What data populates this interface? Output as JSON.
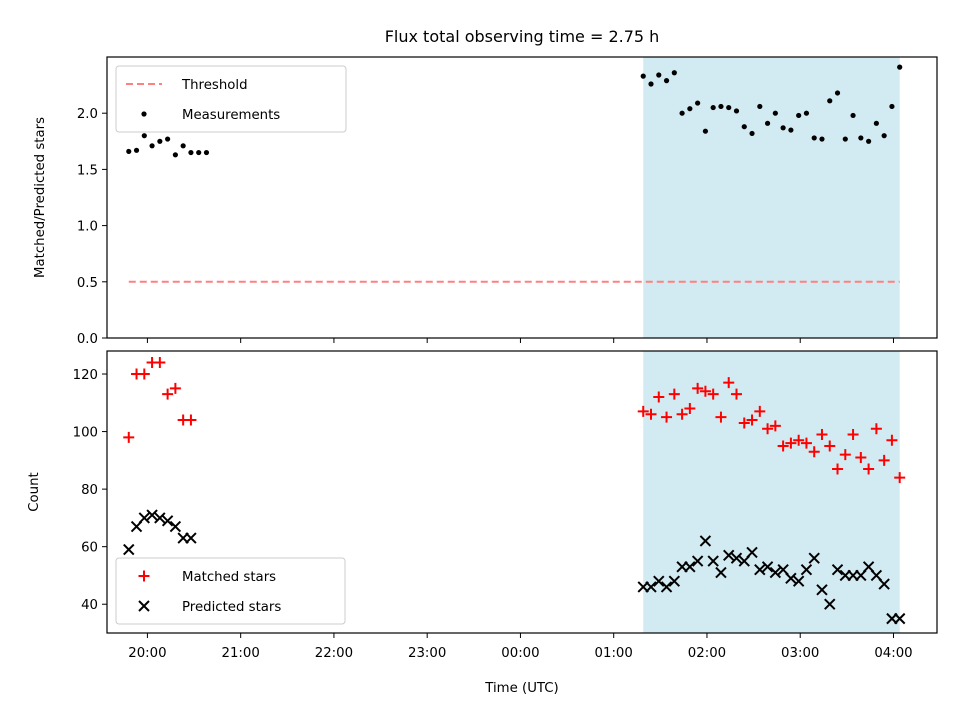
{
  "chart_data": {
    "title": "Flux total observing time = 2.75 h",
    "xlabel": "Time (UTC)",
    "xlim": [
      "19:34",
      "04:28"
    ],
    "x_ticks": [
      "20:00",
      "21:00",
      "22:00",
      "23:00",
      "00:00",
      "01:00",
      "02:00",
      "03:00",
      "04:00"
    ],
    "shaded_interval": [
      "01:19",
      "04:04"
    ],
    "shade_color": "#add8e6",
    "panels": [
      {
        "type": "scatter",
        "ylabel": "Matched/Predicted stars",
        "ylim": [
          0,
          2.5
        ],
        "y_ticks": [
          "0.0",
          "0.5",
          "1.0",
          "1.5",
          "2.0"
        ],
        "legend_position": "upper left",
        "series": [
          {
            "name": "Threshold",
            "style": "dashed-line",
            "color": "#ff8080",
            "x": [
              "19:48",
              "04:04"
            ],
            "y": [
              0.5,
              0.5
            ]
          },
          {
            "name": "Measurements",
            "style": "dot",
            "color": "#000000",
            "x": [
              "19:48",
              "19:53",
              "19:58",
              "20:03",
              "20:08",
              "20:13",
              "20:18",
              "20:23",
              "20:28",
              "20:33",
              "20:38",
              "01:19",
              "01:24",
              "01:29",
              "01:34",
              "01:39",
              "01:44",
              "01:49",
              "01:54",
              "01:59",
              "02:04",
              "02:09",
              "02:14",
              "02:19",
              "02:24",
              "02:29",
              "02:34",
              "02:39",
              "02:44",
              "02:49",
              "02:54",
              "02:59",
              "03:04",
              "03:09",
              "03:14",
              "03:19",
              "03:24",
              "03:29",
              "03:34",
              "03:39",
              "03:44",
              "03:49",
              "03:54",
              "03:59",
              "04:04"
            ],
            "y": [
              1.66,
              1.67,
              1.8,
              1.71,
              1.75,
              1.77,
              1.63,
              1.71,
              1.65,
              1.65,
              1.65,
              2.33,
              2.26,
              2.34,
              2.29,
              2.36,
              2.0,
              2.04,
              2.09,
              1.84,
              2.05,
              2.06,
              2.05,
              2.02,
              1.88,
              1.82,
              2.06,
              1.91,
              2.0,
              1.87,
              1.85,
              1.98,
              2.0,
              1.78,
              1.77,
              2.11,
              2.18,
              1.77,
              1.98,
              1.78,
              1.75,
              1.91,
              1.8,
              2.06,
              2.41
            ]
          }
        ]
      },
      {
        "type": "scatter",
        "ylabel": "Count",
        "ylim": [
          30,
          128
        ],
        "y_ticks": [
          "40",
          "60",
          "80",
          "100",
          "120"
        ],
        "legend_position": "lower left",
        "series": [
          {
            "name": "Matched stars",
            "marker": "plus",
            "color": "#ff0000",
            "x": [
              "19:48",
              "19:53",
              "19:58",
              "20:03",
              "20:08",
              "20:13",
              "20:18",
              "20:23",
              "20:28",
              "01:19",
              "01:24",
              "01:29",
              "01:34",
              "01:39",
              "01:44",
              "01:49",
              "01:54",
              "01:59",
              "02:04",
              "02:09",
              "02:14",
              "02:19",
              "02:24",
              "02:29",
              "02:34",
              "02:39",
              "02:44",
              "02:49",
              "02:54",
              "02:59",
              "03:04",
              "03:09",
              "03:14",
              "03:19",
              "03:24",
              "03:29",
              "03:34",
              "03:39",
              "03:44",
              "03:49",
              "03:54",
              "03:59",
              "04:04"
            ],
            "y": [
              98,
              120,
              120,
              124,
              124,
              113,
              115,
              104,
              104,
              107,
              106,
              112,
              105,
              113,
              106,
              108,
              115,
              114,
              113,
              105,
              117,
              113,
              103,
              104,
              107,
              101,
              102,
              95,
              96,
              97,
              96,
              93,
              99,
              95,
              87,
              92,
              99,
              91,
              87,
              101,
              90,
              97,
              84
            ]
          },
          {
            "name": "Predicted stars",
            "marker": "x",
            "color": "#000000",
            "x": [
              "19:48",
              "19:53",
              "19:58",
              "20:03",
              "20:08",
              "20:13",
              "20:18",
              "20:23",
              "20:28",
              "01:19",
              "01:24",
              "01:29",
              "01:34",
              "01:39",
              "01:44",
              "01:49",
              "01:54",
              "01:59",
              "02:04",
              "02:09",
              "02:14",
              "02:19",
              "02:24",
              "02:29",
              "02:34",
              "02:39",
              "02:44",
              "02:49",
              "02:54",
              "02:59",
              "03:04",
              "03:09",
              "03:14",
              "03:19",
              "03:24",
              "03:29",
              "03:34",
              "03:39",
              "03:44",
              "03:49",
              "03:54",
              "03:59",
              "04:04"
            ],
            "y": [
              59,
              67,
              70,
              71,
              70,
              69,
              67,
              63,
              63,
              46,
              46,
              48,
              46,
              48,
              53,
              53,
              55,
              62,
              55,
              51,
              57,
              56,
              55,
              58,
              52,
              53,
              51,
              52,
              49,
              48,
              52,
              56,
              45,
              40,
              52,
              50,
              50,
              50,
              53,
              50,
              47,
              35,
              35
            ]
          }
        ]
      }
    ]
  }
}
